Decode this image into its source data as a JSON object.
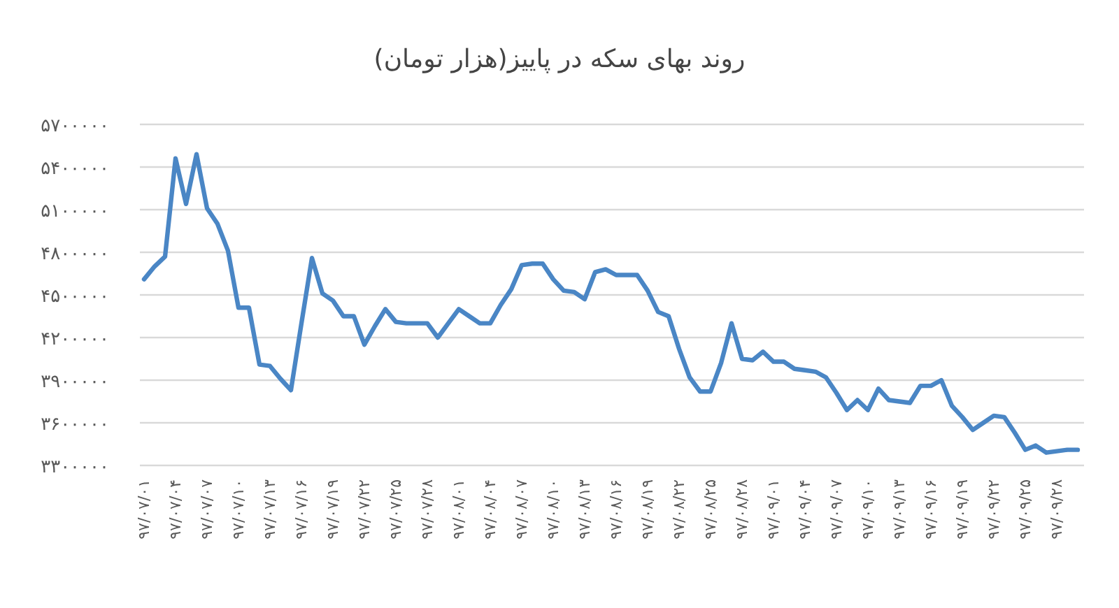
{
  "chart_data": {
    "type": "line",
    "title": "روند بهای سکه در پاییز(هزار تومان)",
    "categories": [
      "۹۷/۰۷/۰۱",
      null,
      null,
      "۹۷/۰۷/۰۴",
      null,
      null,
      "۹۷/۰۷/۰۷",
      null,
      null,
      "۹۷/۰۷/۱۰",
      null,
      null,
      "۹۷/۰۷/۱۳",
      null,
      null,
      "۹۷/۰۷/۱۶",
      null,
      null,
      "۹۷/۰۷/۱۹",
      null,
      null,
      "۹۷/۰۷/۲۲",
      null,
      null,
      "۹۷/۰۷/۲۵",
      null,
      null,
      "۹۷/۰۷/۲۸",
      null,
      null,
      "۹۷/۰۸/۰۱",
      null,
      null,
      "۹۷/۰۸/۰۴",
      null,
      null,
      "۹۷/۰۸/۰۷",
      null,
      null,
      "۹۷/۰۸/۱۰",
      null,
      null,
      "۹۷/۰۸/۱۳",
      null,
      null,
      "۹۷/۰۸/۱۶",
      null,
      null,
      "۹۷/۰۸/۱۹",
      null,
      null,
      "۹۷/۰۸/۲۲",
      null,
      null,
      "۹۷/۰۸/۲۵",
      null,
      null,
      "۹۷/۰۸/۲۸",
      null,
      null,
      "۹۷/۰۹/۰۱",
      null,
      null,
      "۹۷/۰۹/۰۴",
      null,
      null,
      "۹۷/۰۹/۰۷",
      null,
      null,
      "۹۷/۰۹/۱۰",
      null,
      null,
      "۹۷/۰۹/۱۳",
      null,
      null,
      "۹۷/۰۹/۱۶",
      null,
      null,
      "۹۷/۰۹/۱۹",
      null,
      null,
      "۹۷/۰۹/۲۲",
      null,
      null,
      "۹۷/۰۹/۲۵",
      null,
      null,
      "۹۷/۰۹/۲۸",
      null,
      null
    ],
    "series": [
      {
        "color": "#4a86c5",
        "values": [
          4610000,
          4700000,
          4770000,
          5460000,
          5140000,
          5490000,
          5110000,
          5000000,
          4810000,
          4410000,
          4410000,
          4010000,
          4000000,
          3910000,
          3830000,
          4300000,
          4760000,
          4510000,
          4460000,
          4350000,
          4350000,
          4150000,
          4280000,
          4400000,
          4310000,
          4300000,
          4300000,
          4300000,
          4200000,
          4300000,
          4400000,
          4350000,
          4300000,
          4300000,
          4430000,
          4540000,
          4710000,
          4720000,
          4720000,
          4610000,
          4530000,
          4520000,
          4470000,
          4660000,
          4680000,
          4640000,
          4640000,
          4640000,
          4530000,
          4380000,
          4350000,
          4120000,
          3920000,
          3820000,
          3820000,
          4020000,
          4300000,
          4050000,
          4040000,
          4100000,
          4030000,
          4030000,
          3980000,
          3970000,
          3960000,
          3920000,
          3810000,
          3690000,
          3760000,
          3690000,
          3840000,
          3760000,
          3750000,
          3740000,
          3860000,
          3860000,
          3900000,
          3720000,
          3640000,
          3550000,
          3600000,
          3650000,
          3640000,
          3530000,
          3410000,
          3440000,
          3390000,
          3400000,
          3410000,
          3410000
        ]
      }
    ],
    "ylim": [
      3300000,
      5700000
    ],
    "yticks": [
      {
        "value": 3300000,
        "label": "۳۳۰۰۰۰۰"
      },
      {
        "value": 3600000,
        "label": "۳۶۰۰۰۰۰"
      },
      {
        "value": 3900000,
        "label": "۳۹۰۰۰۰۰"
      },
      {
        "value": 4200000,
        "label": "۴۲۰۰۰۰۰"
      },
      {
        "value": 4500000,
        "label": "۴۵۰۰۰۰۰"
      },
      {
        "value": 4800000,
        "label": "۴۸۰۰۰۰۰"
      },
      {
        "value": 5100000,
        "label": "۵۱۰۰۰۰۰"
      },
      {
        "value": 5400000,
        "label": "۵۴۰۰۰۰۰"
      },
      {
        "value": 5700000,
        "label": "۵۷۰۰۰۰۰"
      }
    ],
    "grid": "y"
  }
}
